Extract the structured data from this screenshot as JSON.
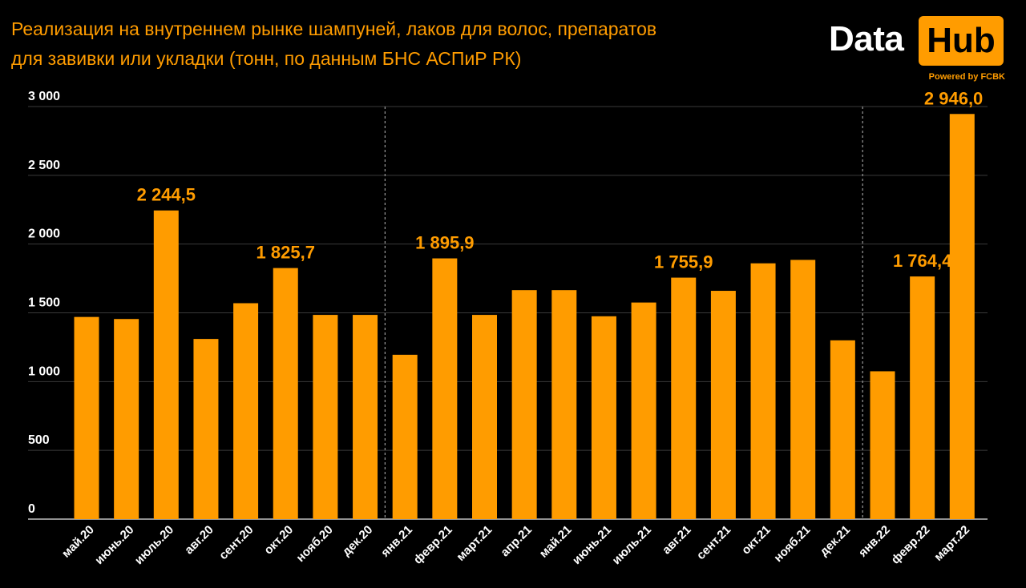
{
  "title_line1": "Реализация на внутреннем рынке шампуней, лаков для волос, препаратов",
  "title_line2": "для завивки или укладки (тонн, по данным БНС АСПиР РК)",
  "logo": {
    "word1": "Data",
    "word2": "Hub",
    "tagline": "Powered by FCBK"
  },
  "colors": {
    "background": "#000000",
    "bar": "#ff9c00",
    "accent_text": "#ff9c00",
    "gridline": "#3a3a3a",
    "divider": "#9a9a9a"
  },
  "chart_data": {
    "type": "bar",
    "categories": [
      "май.20",
      "июнь.20",
      "июль.20",
      "авг.20",
      "сент.20",
      "окт.20",
      "нояб.20",
      "дек.20",
      "янв.21",
      "февр.21",
      "март.21",
      "апр.21",
      "май.21",
      "июнь.21",
      "июль.21",
      "авг.21",
      "сент.21",
      "окт.21",
      "нояб.21",
      "дек.21",
      "янв.22",
      "февр.22",
      "март.22"
    ],
    "values": [
      1470,
      1455,
      2244.5,
      1310,
      1570,
      1825.7,
      1485,
      1485,
      1195,
      1895.9,
      1485,
      1665,
      1665,
      1475,
      1575,
      1755.9,
      1660,
      1860,
      1885,
      1300,
      1075,
      1764.4,
      2946.0
    ],
    "data_labels": [
      {
        "index": 2,
        "text": "2 244,5"
      },
      {
        "index": 5,
        "text": "1 825,7"
      },
      {
        "index": 9,
        "text": "1 895,9"
      },
      {
        "index": 15,
        "text": "1 755,9"
      },
      {
        "index": 21,
        "text": "1 764,4"
      },
      {
        "index": 22,
        "text": "2 946,0"
      }
    ],
    "yticks": [
      {
        "value": 0,
        "label": "0"
      },
      {
        "value": 500,
        "label": "500"
      },
      {
        "value": 1000,
        "label": "1 000"
      },
      {
        "value": 1500,
        "label": "1 500"
      },
      {
        "value": 2000,
        "label": "2 000"
      },
      {
        "value": 2500,
        "label": "2 500"
      },
      {
        "value": 3000,
        "label": "3 000"
      }
    ],
    "ylim": [
      0,
      3000
    ],
    "grid": true,
    "year_dividers_after": [
      7,
      19
    ],
    "xlabel": "",
    "ylabel": ""
  }
}
